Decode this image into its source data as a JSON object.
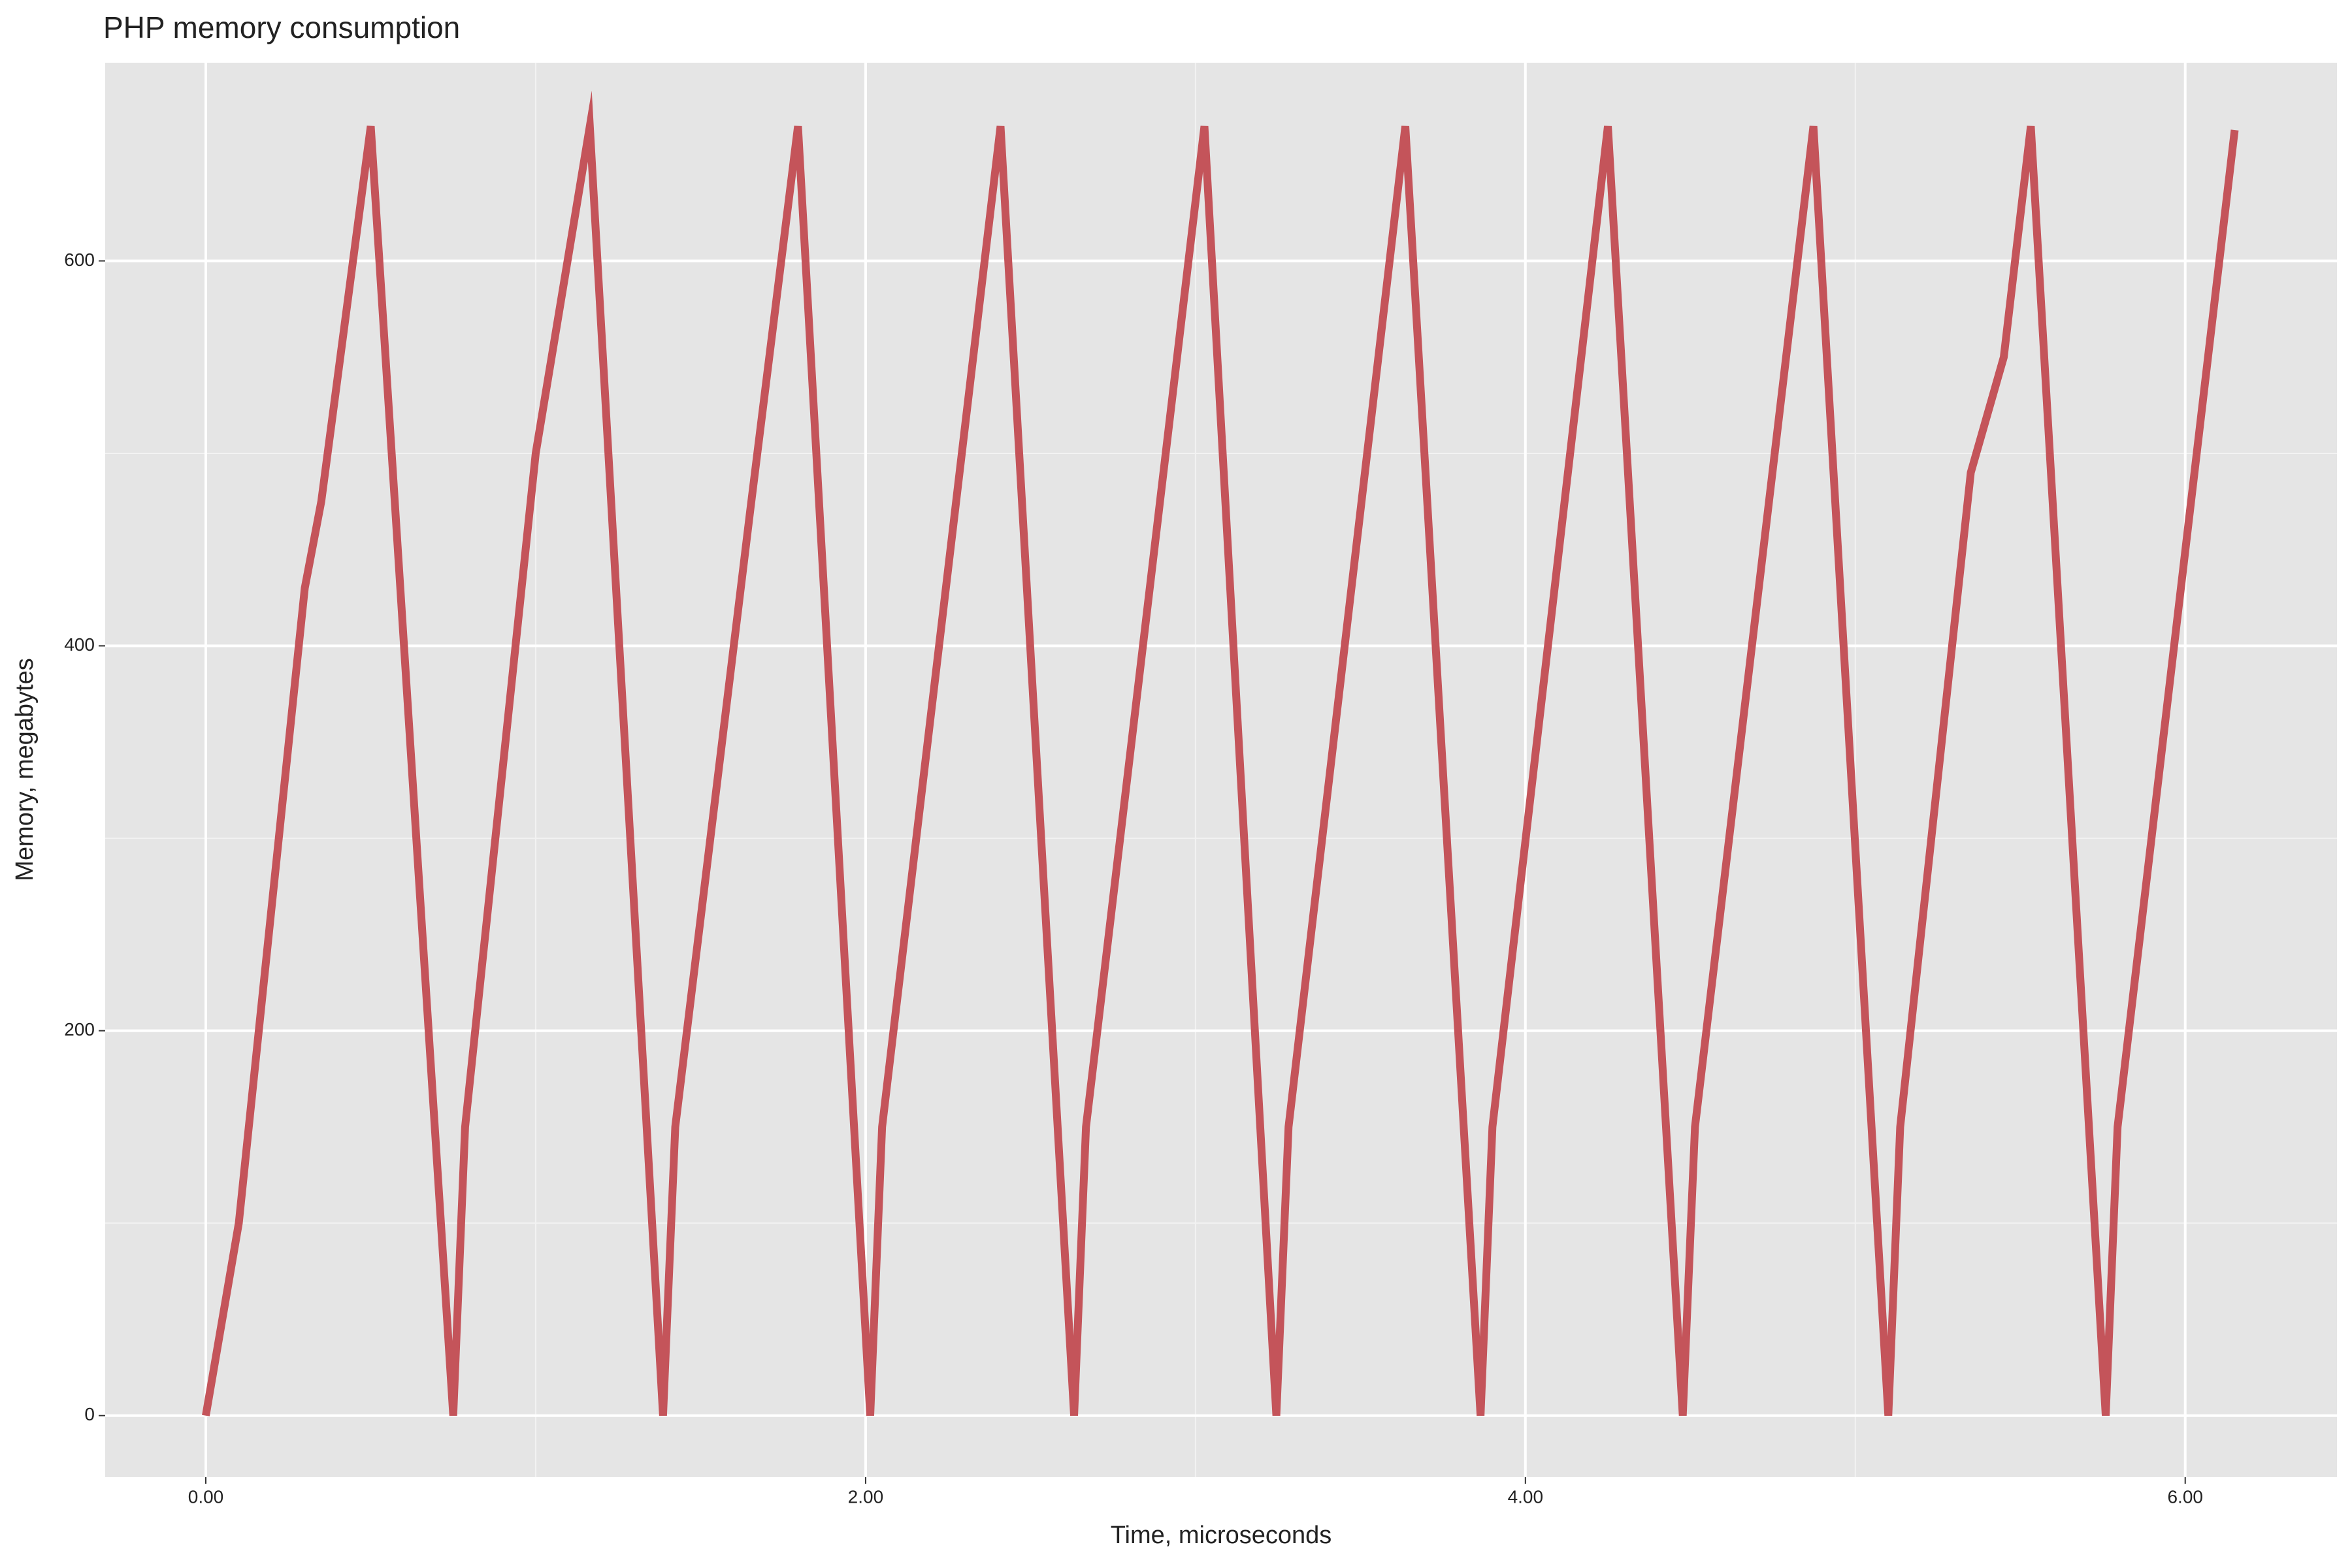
{
  "chart_data": {
    "type": "line",
    "title": "PHP memory consumption",
    "x_label": "Time, microseconds",
    "y_label": "Memory, megabytes",
    "series": [
      {
        "name": "memory",
        "color": "#c4545a",
        "x": [
          0,
          0.1,
          0.3,
          0.35,
          0.5,
          0.75,
          0.786,
          1.0,
          1.164,
          1.386,
          1.423,
          1.65,
          1.795,
          2.014,
          2.05,
          2.409,
          2.632,
          2.668,
          3.027,
          3.245,
          3.282,
          3.636,
          3.864,
          3.9,
          4.25,
          4.477,
          4.514,
          4.873,
          5.1,
          5.136,
          5.35,
          5.45,
          5.532,
          5.759,
          5.795,
          6.15
        ],
        "values": [
          0,
          100,
          430,
          475,
          670,
          0,
          150,
          500,
          670,
          0,
          150,
          470,
          670,
          0,
          150,
          670,
          0,
          150,
          670,
          0,
          150,
          670,
          0,
          150,
          670,
          0,
          150,
          670,
          0,
          150,
          490,
          550,
          670,
          0,
          150,
          668
        ]
      }
    ],
    "xlim": [
      -0.305,
      6.46
    ],
    "xticks": [
      {
        "value": 0,
        "label": "0.00"
      },
      {
        "value": 2,
        "label": "2.00"
      },
      {
        "value": 4,
        "label": "4.00"
      },
      {
        "value": 6,
        "label": "6.00"
      }
    ],
    "xminor": [
      1,
      3,
      5
    ],
    "ylim": [
      -32,
      703
    ],
    "yticks": [
      0,
      200,
      400,
      600
    ],
    "yminor": [
      100,
      300,
      500
    ],
    "grid": true
  }
}
